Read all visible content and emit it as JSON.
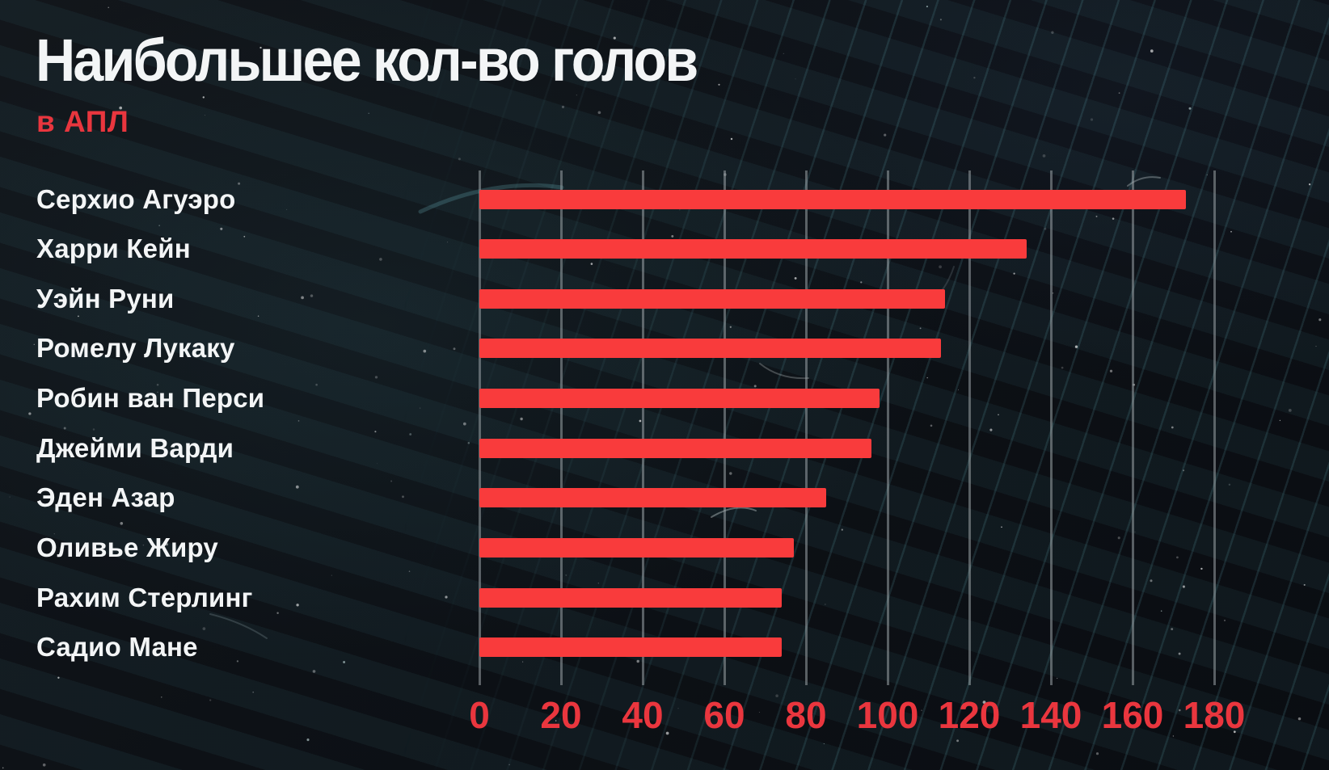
{
  "header": {
    "title": "Наибольшее кол-во голов",
    "subtitle": "в АПЛ"
  },
  "chart_data": {
    "type": "bar",
    "orientation": "horizontal",
    "title": "Наибольшее кол-во голов",
    "subtitle": "в АПЛ",
    "categories": [
      "Серхио Агуэро",
      "Харри Кейн",
      "Уэйн Руни",
      "Ромелу Лукаку",
      "Робин ван Перси",
      "Джейми Варди",
      "Эден Азар",
      "Оливье Жиру",
      "Рахим Стерлинг",
      "Садио Мане"
    ],
    "values": [
      173,
      134,
      114,
      113,
      98,
      96,
      85,
      77,
      74,
      74
    ],
    "xlabel": "",
    "ylabel": "",
    "xlim": [
      0,
      180
    ],
    "xticks": [
      0,
      20,
      40,
      60,
      80,
      100,
      120,
      140,
      160,
      180
    ],
    "xtick_labels": [
      "0",
      "20",
      "40",
      "60",
      "80",
      "100",
      "120",
      "140",
      "160",
      "180"
    ],
    "grid": "vertical",
    "legend": "none",
    "colors": {
      "bar": "#f93b3c",
      "tick_text": "#ea363e",
      "subtitle_text": "#e9363e",
      "title_text": "#f3f5f6",
      "gridline": "#a2a8ad",
      "background": "#0d1116"
    }
  }
}
